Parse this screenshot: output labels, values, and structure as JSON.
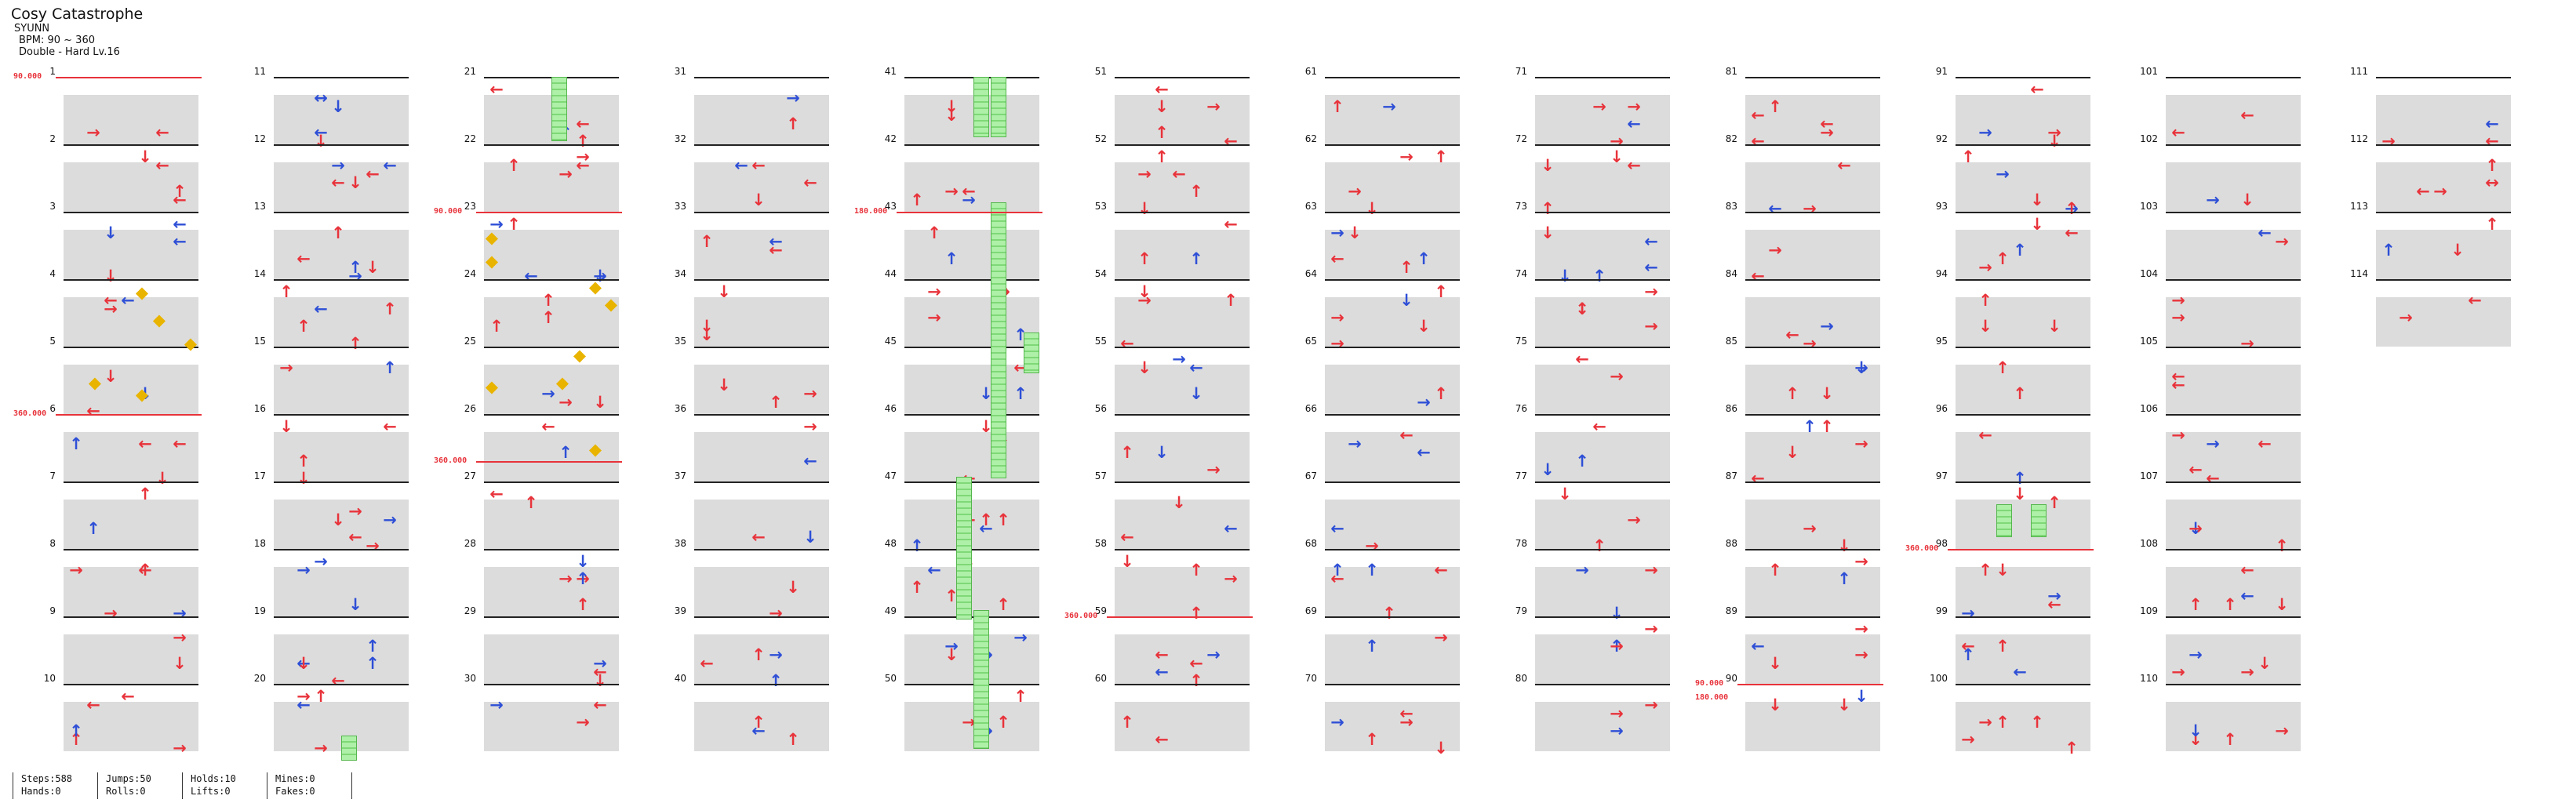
{
  "header": {
    "title": "Cosy Catastrophe",
    "artist": "SYUNN",
    "bpm": "BPM: 90 ~ 360",
    "difficulty": "Double - Hard Lv.16"
  },
  "columns": [
    {
      "measures": [
        "1",
        "2",
        "3",
        "4",
        "5",
        "6",
        "7",
        "8",
        "9",
        "10"
      ]
    },
    {
      "measures": [
        "11",
        "12",
        "13",
        "14",
        "15",
        "16",
        "17",
        "18",
        "19",
        "20"
      ]
    },
    {
      "measures": [
        "21",
        "22",
        "23",
        "24",
        "25",
        "26",
        "27",
        "28",
        "29",
        "30"
      ]
    },
    {
      "measures": [
        "31",
        "32",
        "33",
        "34",
        "35",
        "36",
        "37",
        "38",
        "39",
        "40"
      ]
    },
    {
      "measures": [
        "41",
        "42",
        "43",
        "44",
        "45",
        "46",
        "47",
        "48",
        "49",
        "50"
      ]
    },
    {
      "measures": [
        "51",
        "52",
        "53",
        "54",
        "55",
        "56",
        "57",
        "58",
        "59",
        "60"
      ]
    },
    {
      "measures": [
        "61",
        "62",
        "63",
        "64",
        "65",
        "66",
        "67",
        "68",
        "69",
        "70"
      ]
    },
    {
      "measures": [
        "71",
        "72",
        "73",
        "74",
        "75",
        "76",
        "77",
        "78",
        "79",
        "80"
      ]
    },
    {
      "measures": [
        "81",
        "82",
        "83",
        "84",
        "85",
        "86",
        "87",
        "88",
        "89",
        "90"
      ]
    },
    {
      "measures": [
        "91",
        "92",
        "93",
        "94",
        "95",
        "96",
        "97",
        "98",
        "99",
        "100"
      ]
    },
    {
      "measures": [
        "101",
        "102",
        "103",
        "104",
        "105",
        "106",
        "107",
        "108",
        "109",
        "110"
      ]
    },
    {
      "measures": [
        "111",
        "112",
        "113",
        "114"
      ]
    }
  ],
  "bpm_changes": [
    {
      "label": "90.000",
      "column": 0,
      "measure": 0
    },
    {
      "label": "360.000",
      "column": 0,
      "measure": 5
    },
    {
      "label": "90.000",
      "column": 2,
      "measure": 2
    },
    {
      "label": "360.000",
      "column": 2,
      "measure": 6
    },
    {
      "label": "180.000",
      "column": 4,
      "measure": 2
    },
    {
      "label": "360.000",
      "column": 5,
      "measure": 8
    },
    {
      "label": "90.000",
      "column": 8,
      "measure": 9
    },
    {
      "label": "180.000",
      "column": 8,
      "measure": 9
    },
    {
      "label": "360.000",
      "column": 9,
      "measure": 7
    }
  ],
  "stats": {
    "steps": "Steps:588",
    "hands": "Hands:0",
    "jumps": "Jumps:50",
    "rolls": "Rolls:0",
    "holds": "Holds:10",
    "lifts": "Lifts:0",
    "mines": "Mines:0",
    "fakes": "Fakes:0"
  },
  "colors": {
    "red_arrow": "#e8333b",
    "blue_arrow": "#2e4fd6",
    "mine": "#e9b400",
    "hold": "#7fd877",
    "band": "#dcdcdc"
  },
  "icons": {
    "up": "up-arrow-icon",
    "down": "down-arrow-icon",
    "left": "left-arrow-icon",
    "right": "right-arrow-icon",
    "mine": "mine-icon",
    "hold": "hold-body-icon"
  }
}
